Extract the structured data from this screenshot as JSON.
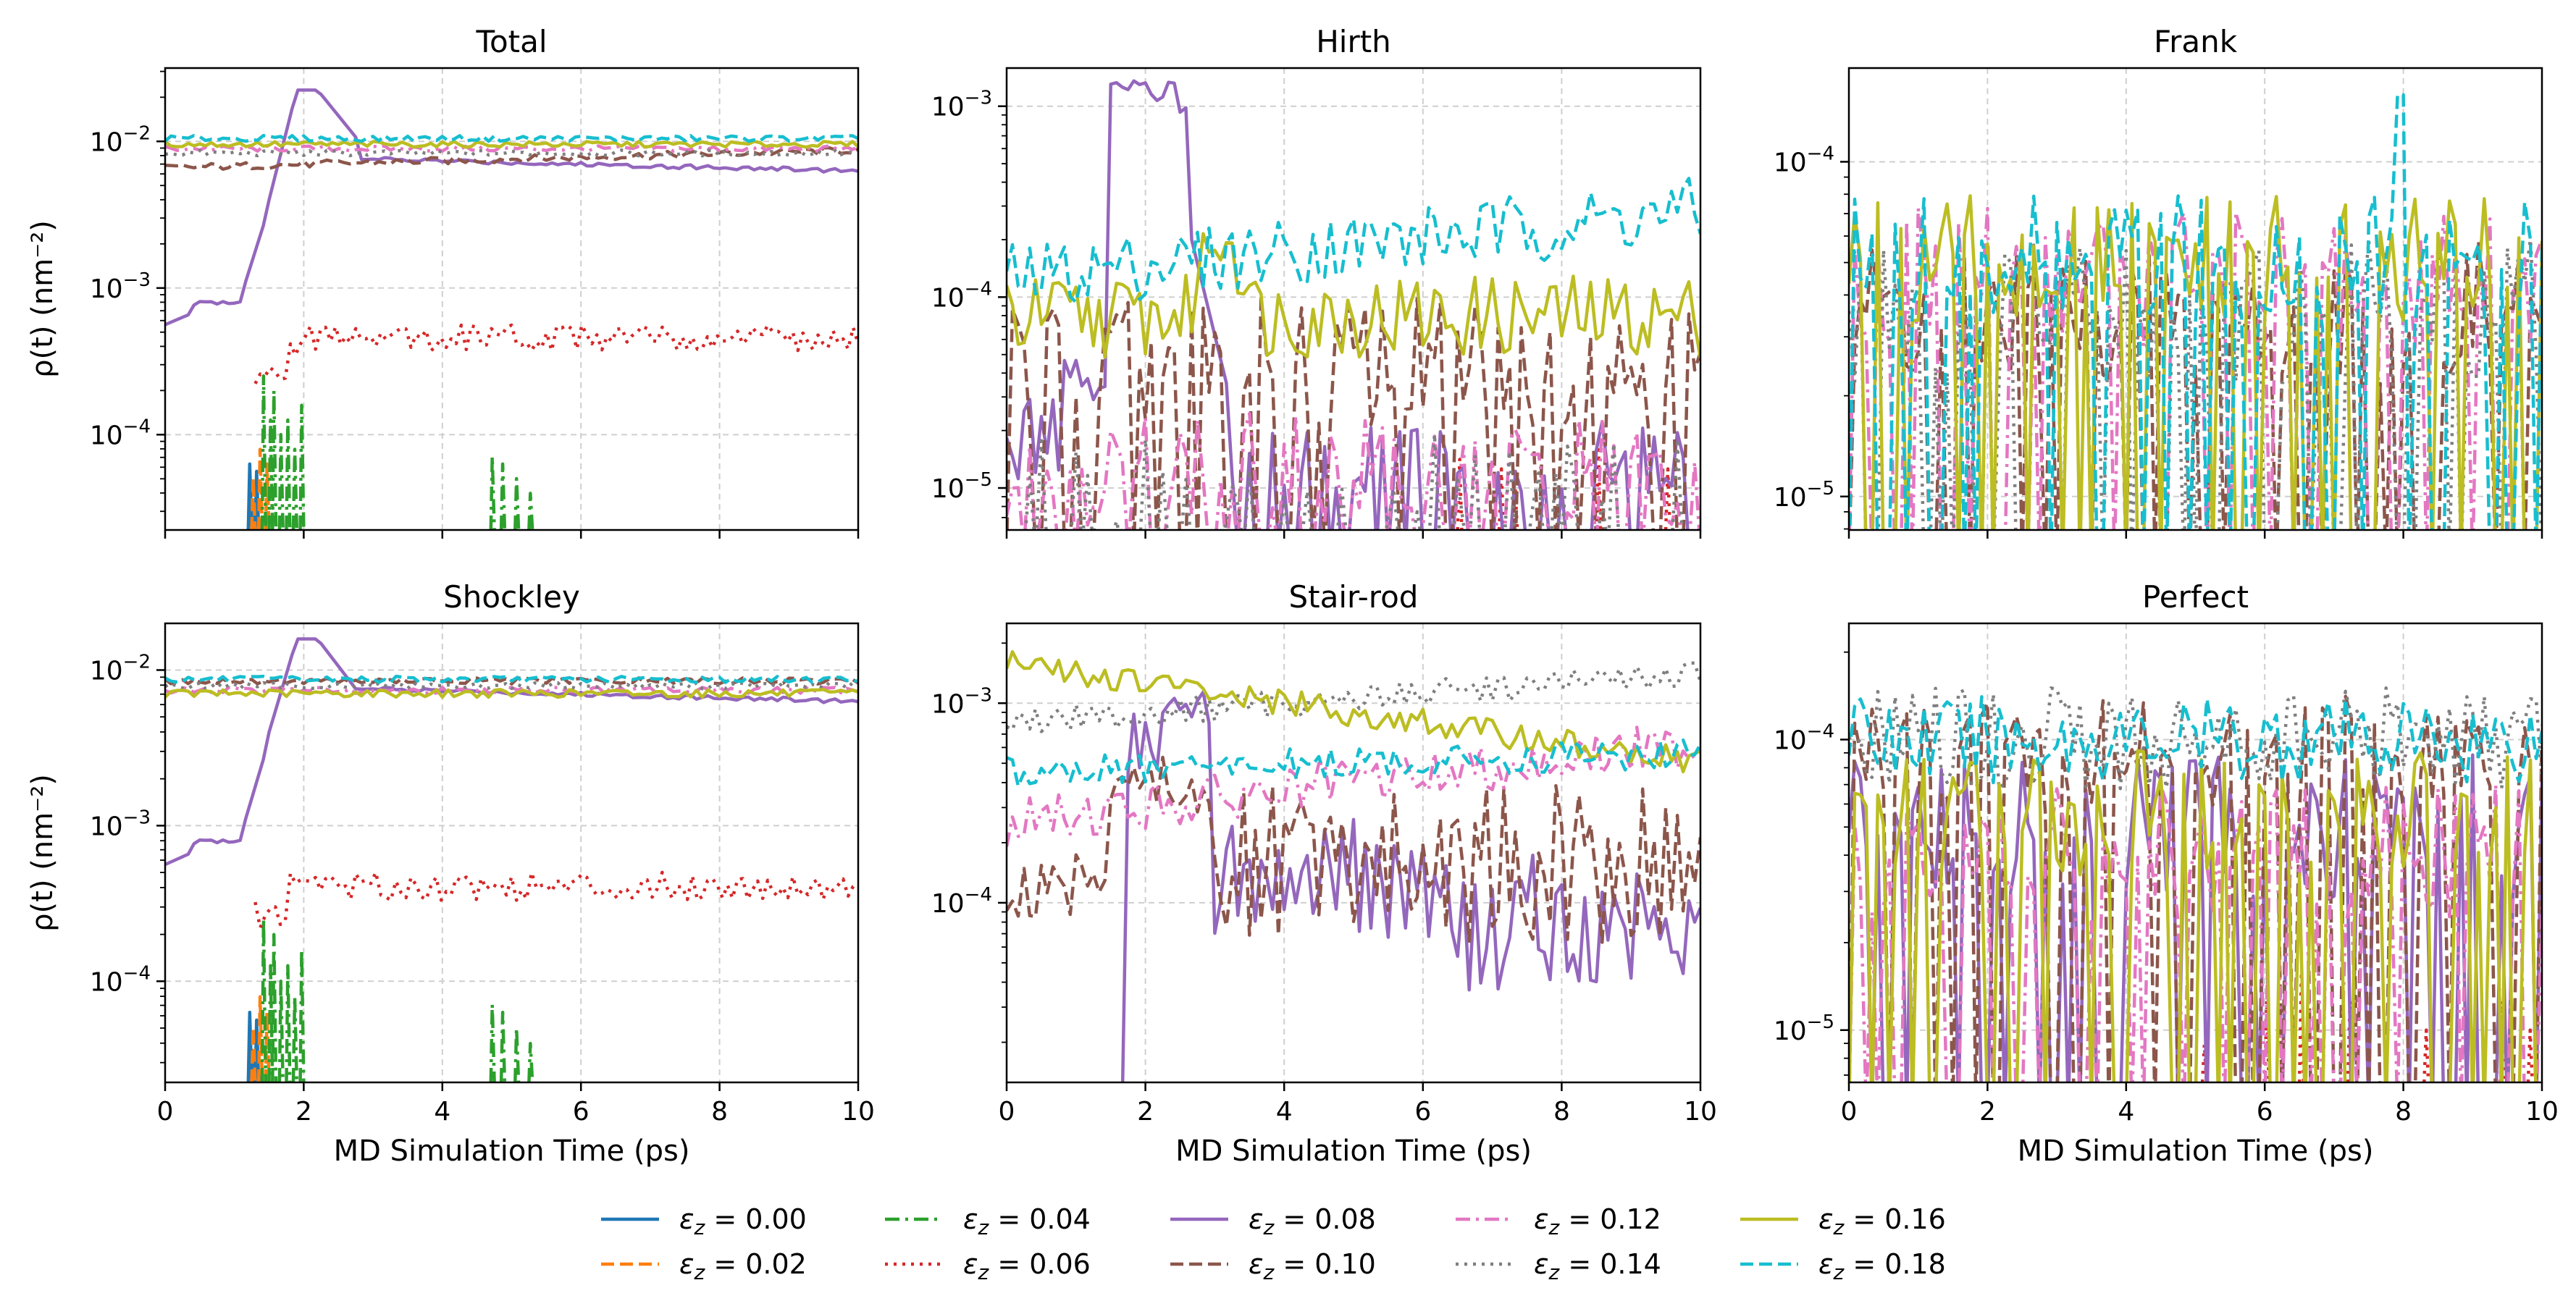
{
  "legend": {
    "entries": [
      {
        "label": "0.00",
        "color": "#1f77b4",
        "dash": "solid"
      },
      {
        "label": "0.02",
        "color": "#ff7f0e",
        "dash": "dashed"
      },
      {
        "label": "0.04",
        "color": "#2ca02c",
        "dash": "dashdot"
      },
      {
        "label": "0.06",
        "color": "#d62728",
        "dash": "dotted"
      },
      {
        "label": "0.08",
        "color": "#9467bd",
        "dash": "solid"
      },
      {
        "label": "0.10",
        "color": "#8c564b",
        "dash": "dashed"
      },
      {
        "label": "0.12",
        "color": "#e377c2",
        "dash": "dashdot"
      },
      {
        "label": "0.14",
        "color": "#7f7f7f",
        "dash": "dotted"
      },
      {
        "label": "0.16",
        "color": "#bcbd22",
        "dash": "solid"
      },
      {
        "label": "0.18",
        "color": "#17becf",
        "dash": "dashed"
      }
    ]
  },
  "chart_data": [
    {
      "type": "line",
      "title": "Total",
      "xlabel": "",
      "ylabel": "ρ(t) (nm⁻²)",
      "xlim": [
        0,
        10
      ],
      "ylim_log10": [
        -4.65,
        -1.5
      ],
      "yscale": "log",
      "grid": true,
      "yticks": [
        "10^-4",
        "10^-3",
        "10^-2"
      ],
      "xticks": [
        "0",
        "2",
        "4",
        "6",
        "8",
        "10"
      ],
      "show_xticklabels": false,
      "series": [
        {
          "name": "ε_z = 0.00",
          "sparse": [
            [
              1.2,
              -4.2
            ],
            [
              1.25,
              -4.5
            ],
            [
              1.3,
              -4.25
            ],
            [
              1.35,
              -4.6
            ]
          ]
        },
        {
          "name": "ε_z = 0.02",
          "sparse": [
            [
              1.25,
              -4.3
            ],
            [
              1.35,
              -4.1
            ],
            [
              1.45,
              -4.2
            ]
          ]
        },
        {
          "name": "ε_z = 0.04",
          "sparse": [
            [
              1.4,
              -3.6
            ],
            [
              1.5,
              -3.9
            ],
            [
              1.55,
              -3.7
            ],
            [
              1.65,
              -4.0
            ],
            [
              1.75,
              -3.9
            ],
            [
              1.85,
              -4.1
            ],
            [
              1.95,
              -3.8
            ],
            [
              4.7,
              -4.15
            ],
            [
              4.85,
              -4.2
            ],
            [
              5.05,
              -4.3
            ],
            [
              5.25,
              -4.4
            ]
          ]
        },
        {
          "name": "ε_z = 0.06",
          "start": 1.3,
          "base": -3.6,
          "end": -3.3,
          "noise": 0.09,
          "phase": 1.1
        },
        {
          "name": "ε_z = 0.08",
          "custom": "total08"
        },
        {
          "name": "ε_z = 0.10",
          "base": -2.1,
          "ramp": [
            -2.18,
            -2.06
          ],
          "noise": 0.025,
          "phase": 2.0
        },
        {
          "name": "ε_z = 0.12",
          "base": -2.05,
          "noise": 0.02,
          "phase": 3.0
        },
        {
          "name": "ε_z = 0.14",
          "base": -2.08,
          "noise": 0.02,
          "phase": 4.0
        },
        {
          "name": "ε_z = 0.16",
          "base": -2.02,
          "noise": 0.02,
          "phase": 5.0
        },
        {
          "name": "ε_z = 0.18",
          "base": -1.98,
          "noise": 0.02,
          "phase": 6.0
        }
      ]
    },
    {
      "type": "line",
      "title": "Hirth",
      "xlabel": "",
      "ylabel": "",
      "xlim": [
        0,
        10
      ],
      "ylim_log10": [
        -5.22,
        -2.8
      ],
      "yscale": "log",
      "grid": true,
      "yticks": [
        "10^-5",
        "10^-4",
        "10^-3"
      ],
      "xticks": [
        "0",
        "2",
        "4",
        "6",
        "8",
        "10"
      ],
      "show_xticklabels": false,
      "series": [
        {
          "name": "ε_z = 0.06",
          "sparse_range": [
            [
              6.5,
              -4.85
            ],
            [
              7.1,
              -4.9
            ],
            [
              7.3,
              -5.0
            ],
            [
              8.5,
              -4.8
            ],
            [
              9.5,
              -4.9
            ]
          ]
        },
        {
          "name": "ε_z = 0.08",
          "custom": "hirth08"
        },
        {
          "name": "ε_z = 0.10",
          "base": -4.35,
          "noise": 0.35,
          "phase": 7.0,
          "drops": true
        },
        {
          "name": "ε_z = 0.12",
          "base": -4.9,
          "noise": 0.3,
          "phase": 8.0,
          "drops": true
        },
        {
          "name": "ε_z = 0.14",
          "base": -5.0,
          "noise": 0.3,
          "phase": 9.0,
          "drops": true,
          "sparseOnly": true
        },
        {
          "name": "ε_z = 0.16",
          "base": -4.1,
          "noise": 0.22,
          "phase": 10.0,
          "bump": [
            2.6,
            3.6,
            0.45
          ]
        },
        {
          "name": "ε_z = 0.18",
          "base": -3.65,
          "ramp": [
            -3.9,
            -3.55
          ],
          "noise": 0.18,
          "phase": 11.0
        }
      ]
    },
    {
      "type": "line",
      "title": "Frank",
      "xlabel": "",
      "ylabel": "",
      "xlim": [
        0,
        10
      ],
      "ylim_log10": [
        -5.1,
        -3.72
      ],
      "yscale": "log",
      "grid": true,
      "yticks": [
        "10^-5",
        "10^-4"
      ],
      "xticks": [
        "0",
        "2",
        "4",
        "6",
        "8",
        "10"
      ],
      "show_xticklabels": false,
      "series": [
        {
          "name": "ε_z = 0.10",
          "base": -4.45,
          "noise": 0.22,
          "phase": 12.0,
          "drops": true
        },
        {
          "name": "ε_z = 0.12",
          "base": -4.35,
          "noise": 0.22,
          "phase": 13.0,
          "drops": true
        },
        {
          "name": "ε_z = 0.14",
          "base": -4.45,
          "noise": 0.22,
          "phase": 14.0,
          "drops": true
        },
        {
          "name": "ε_z = 0.16",
          "base": -4.3,
          "noise": 0.2,
          "phase": 15.0,
          "drops": true
        },
        {
          "name": "ε_z = 0.18",
          "base": -4.3,
          "noise": 0.2,
          "phase": 16.0,
          "drops": true,
          "spike": [
            7.95,
            -3.8
          ]
        }
      ]
    },
    {
      "type": "line",
      "title": "Shockley",
      "xlabel": "MD Simulation Time (ps)",
      "ylabel": "ρ(t) (nm⁻²)",
      "xlim": [
        0,
        10
      ],
      "ylim_log10": [
        -4.65,
        -1.7
      ],
      "yscale": "log",
      "grid": true,
      "yticks": [
        "10^-4",
        "10^-3",
        "10^-2"
      ],
      "xticks": [
        "0",
        "2",
        "4",
        "6",
        "8",
        "10"
      ],
      "show_xticklabels": true,
      "series": [
        {
          "name": "ε_z = 0.00",
          "sparse": [
            [
              1.2,
              -4.2
            ],
            [
              1.25,
              -4.5
            ],
            [
              1.3,
              -4.25
            ],
            [
              1.35,
              -4.6
            ]
          ]
        },
        {
          "name": "ε_z = 0.02",
          "sparse": [
            [
              1.25,
              -4.3
            ],
            [
              1.35,
              -4.1
            ],
            [
              1.45,
              -4.2
            ]
          ]
        },
        {
          "name": "ε_z = 0.04",
          "sparse": [
            [
              1.4,
              -3.6
            ],
            [
              1.5,
              -3.9
            ],
            [
              1.55,
              -3.7
            ],
            [
              1.65,
              -4.0
            ],
            [
              1.75,
              -3.9
            ],
            [
              1.85,
              -4.1
            ],
            [
              1.95,
              -3.8
            ],
            [
              4.7,
              -4.15
            ],
            [
              4.85,
              -4.2
            ],
            [
              5.05,
              -4.3
            ],
            [
              5.25,
              -4.4
            ]
          ]
        },
        {
          "name": "ε_z = 0.06",
          "start": 1.3,
          "base": -3.4,
          "end": -3.35,
          "noise": 0.09,
          "phase": 17.0
        },
        {
          "name": "ε_z = 0.08",
          "custom": "shock08"
        },
        {
          "name": "ε_z = 0.10",
          "base": -2.07,
          "noise": 0.02,
          "phase": 18.0
        },
        {
          "name": "ε_z = 0.12",
          "base": -2.13,
          "noise": 0.02,
          "phase": 19.0
        },
        {
          "name": "ε_z = 0.14",
          "base": -2.1,
          "noise": 0.02,
          "phase": 20.0
        },
        {
          "name": "ε_z = 0.16",
          "base": -2.15,
          "noise": 0.025,
          "phase": 21.0
        },
        {
          "name": "ε_z = 0.18",
          "base": -2.06,
          "noise": 0.02,
          "phase": 22.0
        }
      ]
    },
    {
      "type": "line",
      "title": "Stair-rod",
      "xlabel": "MD Simulation Time (ps)",
      "ylabel": "",
      "xlim": [
        0,
        10
      ],
      "ylim_log10": [
        -4.9,
        -2.6
      ],
      "yscale": "log",
      "grid": true,
      "yticks": [
        "10^-4",
        "10^-3"
      ],
      "xticks": [
        "0",
        "2",
        "4",
        "6",
        "8",
        "10"
      ],
      "show_xticklabels": true,
      "series": [
        {
          "name": "ε_z = 0.08",
          "custom": "stair08"
        },
        {
          "name": "ε_z = 0.10",
          "custom": "stair10"
        },
        {
          "name": "ε_z = 0.12",
          "base": -3.25,
          "ramp": [
            -3.6,
            -3.2
          ],
          "noise": 0.12,
          "phase": 23.0
        },
        {
          "name": "ε_z = 0.14",
          "base": -2.95,
          "ramp": [
            -3.1,
            -2.85
          ],
          "noise": 0.07,
          "phase": 24.0
        },
        {
          "name": "ε_z = 0.16",
          "base": -3.2,
          "ramp": [
            -2.8,
            -3.3
          ],
          "noise": 0.07,
          "phase": 25.0
        },
        {
          "name": "ε_z = 0.18",
          "base": -3.25,
          "ramp": [
            -3.35,
            -3.25
          ],
          "noise": 0.08,
          "phase": 26.0
        }
      ]
    },
    {
      "type": "line",
      "title": "Perfect",
      "xlabel": "MD Simulation Time (ps)",
      "ylabel": "",
      "xlim": [
        0,
        10
      ],
      "ylim_log10": [
        -5.18,
        -3.6
      ],
      "yscale": "log",
      "grid": true,
      "yticks": [
        "10^-5",
        "10^-4"
      ],
      "xticks": [
        "0",
        "2",
        "4",
        "6",
        "8",
        "10"
      ],
      "show_xticklabels": true,
      "series": [
        {
          "name": "ε_z = 0.06",
          "sparse_range": [
            [
              5.1,
              -5.05
            ],
            [
              6.0,
              -4.9
            ],
            [
              6.5,
              -4.8
            ],
            [
              7.2,
              -4.9
            ],
            [
              8.3,
              -5.0
            ],
            [
              9.4,
              -4.9
            ],
            [
              9.8,
              -5.0
            ]
          ]
        },
        {
          "name": "ε_z = 0.08",
          "base": -4.3,
          "noise": 0.25,
          "phase": 27.0,
          "drops": true
        },
        {
          "name": "ε_z = 0.10",
          "base": -4.05,
          "noise": 0.2,
          "phase": 28.0,
          "drops": true
        },
        {
          "name": "ε_z = 0.12",
          "base": -4.4,
          "noise": 0.25,
          "phase": 29.0,
          "drops": true
        },
        {
          "name": "ε_z = 0.14",
          "base": -4.0,
          "noise": 0.18,
          "phase": 30.0
        },
        {
          "name": "ε_z = 0.16",
          "base": -4.25,
          "noise": 0.22,
          "phase": 31.0,
          "drops": true
        },
        {
          "name": "ε_z = 0.18",
          "base": -4.0,
          "noise": 0.15,
          "phase": 32.0
        }
      ]
    }
  ]
}
